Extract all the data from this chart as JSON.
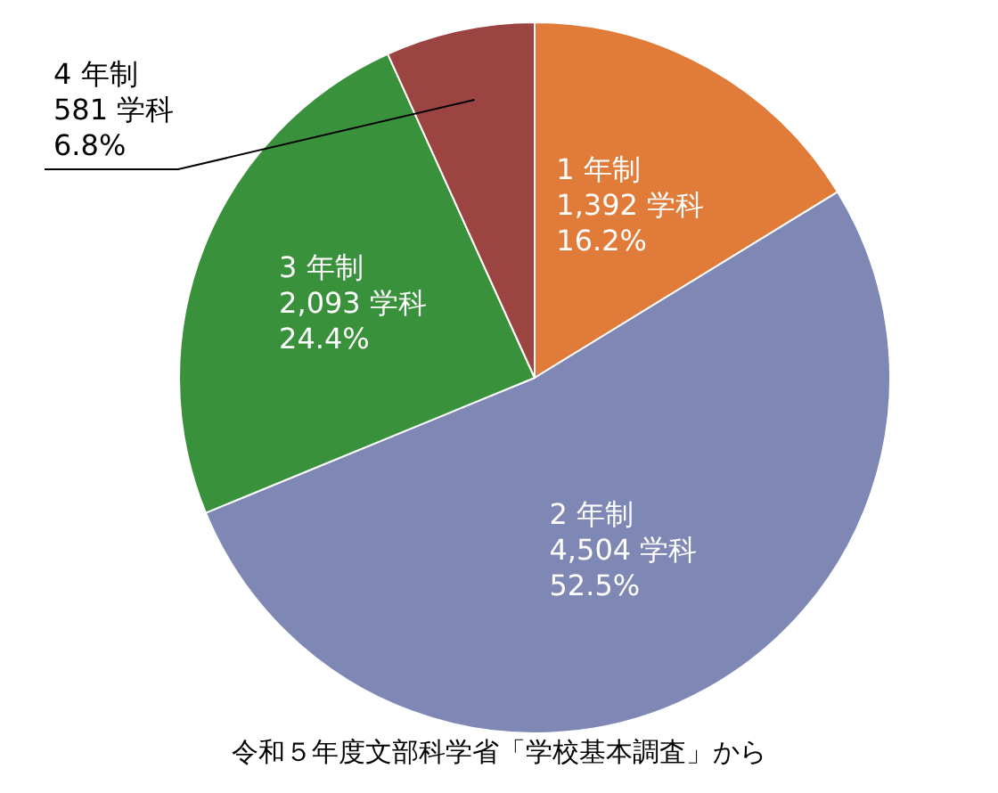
{
  "chart_data": {
    "type": "pie",
    "categories": [
      "1 年制",
      "2 年制",
      "3 年制",
      "4 年制"
    ],
    "values": [
      1392,
      4504,
      2093,
      581
    ],
    "value_labels": [
      "1,392 学科\n16.2%",
      "4,504 学科\n52.5%",
      "2,093 学科\n24.4%",
      "581 学科\n6.8%"
    ],
    "colors": [
      "#e07b39",
      "#7f87b5",
      "#3a913b",
      "#9b4442"
    ],
    "legend": false,
    "annotations": [
      "令和５年度文部科学省「学校基本調査」から"
    ]
  }
}
